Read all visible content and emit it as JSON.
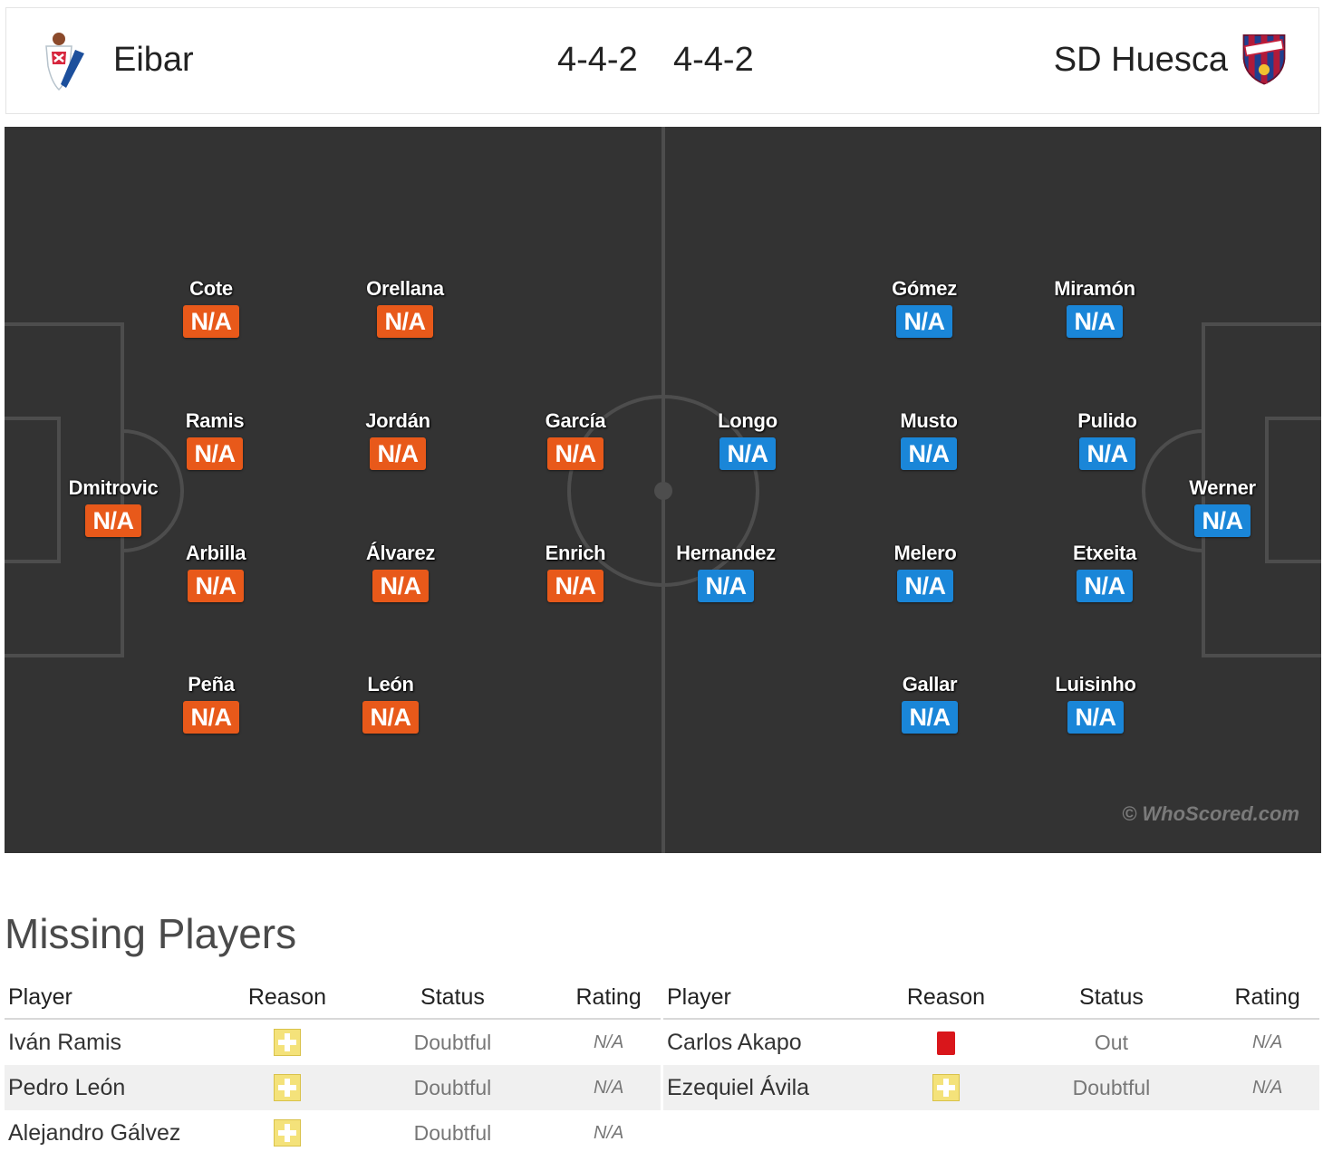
{
  "header": {
    "home": {
      "name": "Eibar",
      "formation": "4-4-2",
      "crest_icon": "eibar-crest-icon"
    },
    "away": {
      "name": "SD Huesca",
      "formation": "4-4-2",
      "crest_icon": "huesca-crest-icon"
    }
  },
  "colors": {
    "home_badge": "#e8591a",
    "away_badge": "#1a86d8",
    "pitch": "#333333"
  },
  "pitch": {
    "watermark": "© WhoScored.com",
    "home_players": [
      {
        "name": "Dmitrovic",
        "rating": "N/A"
      },
      {
        "name": "Cote",
        "rating": "N/A"
      },
      {
        "name": "Ramis",
        "rating": "N/A"
      },
      {
        "name": "Arbilla",
        "rating": "N/A"
      },
      {
        "name": "Peña",
        "rating": "N/A"
      },
      {
        "name": "Orellana",
        "rating": "N/A"
      },
      {
        "name": "Jordán",
        "rating": "N/A"
      },
      {
        "name": "Álvarez",
        "rating": "N/A"
      },
      {
        "name": "León",
        "rating": "N/A"
      },
      {
        "name": "García",
        "rating": "N/A"
      },
      {
        "name": "Enrich",
        "rating": "N/A"
      }
    ],
    "away_players": [
      {
        "name": "Werner",
        "rating": "N/A"
      },
      {
        "name": "Miramón",
        "rating": "N/A"
      },
      {
        "name": "Pulido",
        "rating": "N/A"
      },
      {
        "name": "Etxeita",
        "rating": "N/A"
      },
      {
        "name": "Luisinho",
        "rating": "N/A"
      },
      {
        "name": "Gómez",
        "rating": "N/A"
      },
      {
        "name": "Musto",
        "rating": "N/A"
      },
      {
        "name": "Melero",
        "rating": "N/A"
      },
      {
        "name": "Gallar",
        "rating": "N/A"
      },
      {
        "name": "Longo",
        "rating": "N/A"
      },
      {
        "name": "Hernandez",
        "rating": "N/A"
      }
    ]
  },
  "missing": {
    "title": "Missing Players",
    "columns": [
      "Player",
      "Reason",
      "Status",
      "Rating"
    ],
    "home": [
      {
        "player": "Iván Ramis",
        "reason": "injury-icon",
        "status": "Doubtful",
        "rating": "N/A"
      },
      {
        "player": "Pedro León",
        "reason": "injury-icon",
        "status": "Doubtful",
        "rating": "N/A"
      },
      {
        "player": "Alejandro Gálvez",
        "reason": "injury-icon",
        "status": "Doubtful",
        "rating": "N/A"
      }
    ],
    "away": [
      {
        "player": "Carlos Akapo",
        "reason": "red-card-icon",
        "status": "Out",
        "rating": "N/A"
      },
      {
        "player": "Ezequiel Ávila",
        "reason": "injury-icon",
        "status": "Doubtful",
        "rating": "N/A"
      }
    ]
  }
}
